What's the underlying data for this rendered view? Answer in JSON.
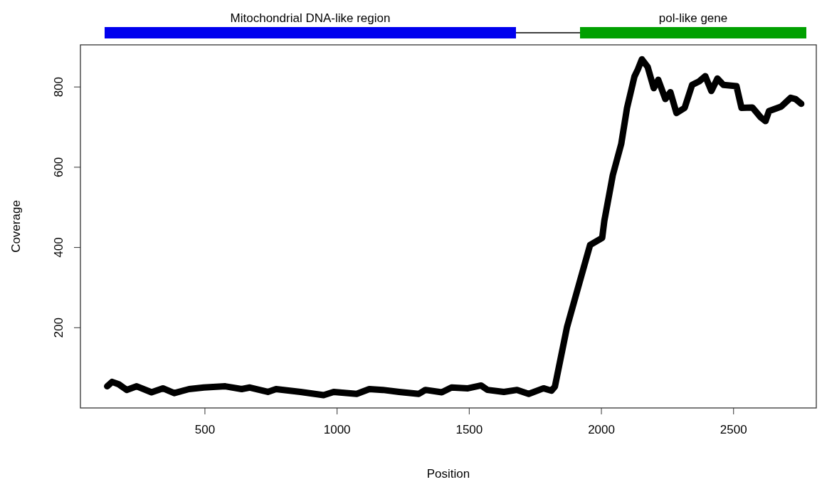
{
  "chart_data": {
    "type": "line",
    "xlabel": "Position",
    "ylabel": "Coverage",
    "xlim": [
      29,
      2813
    ],
    "ylim": [
      0,
      905
    ],
    "xticks": [
      500,
      1000,
      1500,
      2000,
      2500
    ],
    "yticks": [
      200,
      400,
      600,
      800
    ],
    "grid": false,
    "marker": "none",
    "line_style": "solid",
    "annotations": [
      "Mitochondrial DNA-like region",
      "pol-like gene"
    ],
    "series": [
      {
        "color": "#000000",
        "x": [
          130,
          149,
          174,
          204,
          242,
          298,
          341,
          384,
          440,
          496,
          577,
          639,
          670,
          738,
          769,
          862,
          949,
          987,
          1074,
          1122,
          1173,
          1235,
          1309,
          1334,
          1396,
          1433,
          1495,
          1545,
          1569,
          1631,
          1681,
          1725,
          1781,
          1811,
          1824,
          1870,
          1916,
          1957,
          2003,
          2011,
          2043,
          2075,
          2097,
          2125,
          2138,
          2153,
          2175,
          2198,
          2215,
          2242,
          2261,
          2284,
          2315,
          2343,
          2370,
          2393,
          2416,
          2439,
          2462,
          2511,
          2530,
          2571,
          2603,
          2621,
          2634,
          2680,
          2716,
          2734,
          2756
        ],
        "values": [
          54,
          65,
          59,
          45,
          54,
          39,
          49,
          37,
          47,
          51,
          54,
          47,
          51,
          40,
          47,
          40,
          32,
          40,
          35,
          47,
          45,
          40,
          35,
          45,
          39,
          51,
          49,
          56,
          45,
          40,
          45,
          35,
          49,
          43,
          53,
          202,
          310,
          406,
          424,
          466,
          580,
          658,
          748,
          826,
          844,
          869,
          850,
          797,
          818,
          770,
          787,
          735,
          748,
          805,
          814,
          827,
          790,
          821,
          805,
          802,
          748,
          749,
          724,
          715,
          740,
          751,
          773,
          770,
          758
        ]
      }
    ]
  }
}
